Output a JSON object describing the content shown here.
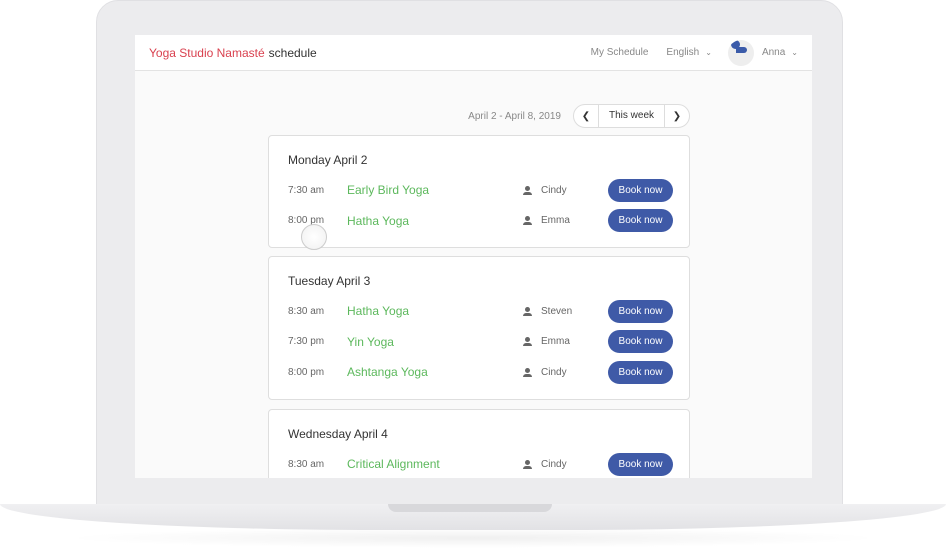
{
  "header": {
    "brand": "Yoga Studio Namasté",
    "brand_suffix": "schedule",
    "my_schedule": "My Schedule",
    "language": "English",
    "user": "Anna"
  },
  "week": {
    "range": "April 2 - April 8, 2019",
    "this_week": "This week"
  },
  "days": [
    {
      "title": "Monday April 2",
      "classes": [
        {
          "time": "7:30 am",
          "name": "Early Bird Yoga",
          "instructor": "Cindy",
          "action": "Book now"
        },
        {
          "time": "8:00 pm",
          "name": "Hatha Yoga",
          "instructor": "Emma",
          "action": "Book now"
        }
      ]
    },
    {
      "title": "Tuesday April 3",
      "classes": [
        {
          "time": "8:30 am",
          "name": "Hatha Yoga",
          "instructor": "Steven",
          "action": "Book now"
        },
        {
          "time": "7:30 pm",
          "name": "Yin Yoga",
          "instructor": "Emma",
          "action": "Book now"
        },
        {
          "time": "8:00 pm",
          "name": "Ashtanga Yoga",
          "instructor": "Cindy",
          "action": "Book now"
        }
      ]
    },
    {
      "title": "Wednesday April 4",
      "classes": [
        {
          "time": "8:30 am",
          "name": "Critical Alignment",
          "instructor": "Cindy",
          "action": "Book now"
        }
      ]
    }
  ],
  "colors": {
    "brand": "#d9414f",
    "class_name": "#5cb85c",
    "button": "#3f5aa7"
  }
}
